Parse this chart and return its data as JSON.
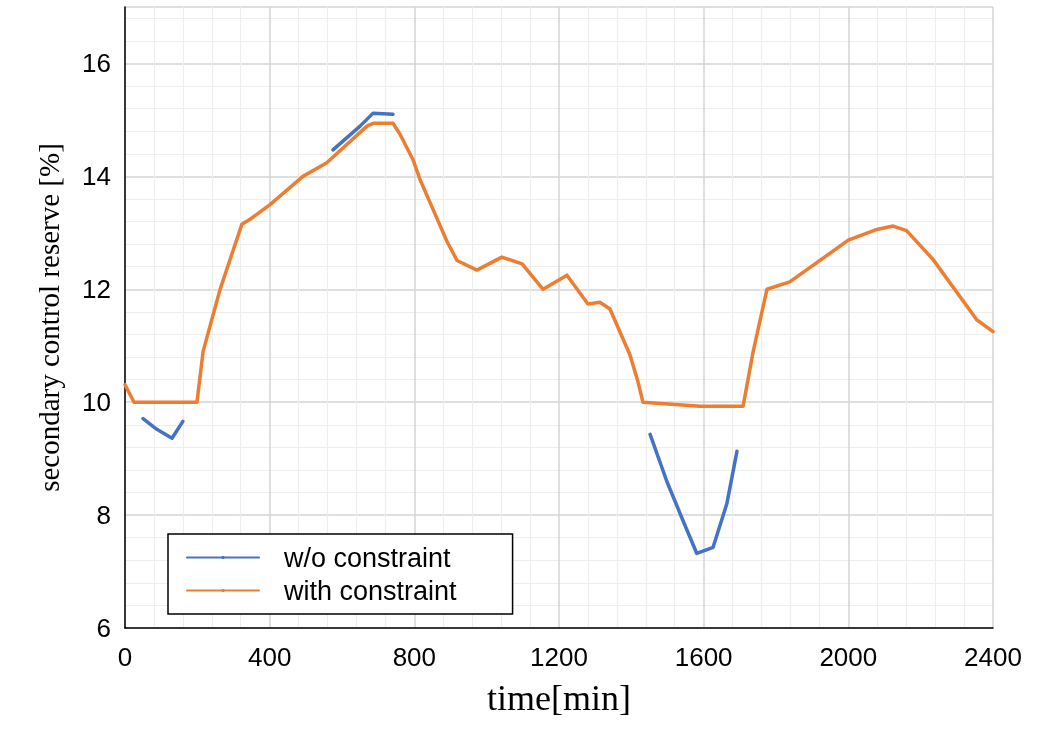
{
  "chart_data": {
    "type": "line",
    "xlabel": "time[min]",
    "ylabel": "secondary control reserve [%]",
    "xlim": [
      0,
      2400
    ],
    "xticks": [
      0,
      400,
      800,
      1200,
      1600,
      2000,
      2400
    ],
    "ylim": [
      6,
      17
    ],
    "yticks": [
      6,
      8,
      10,
      12,
      14,
      16
    ],
    "grid": true,
    "legend": "bottom left",
    "marker": "none",
    "line_style": "solid",
    "series": [
      {
        "name": "w/o constraint",
        "color": "#4472c4",
        "x": [
          50,
          88,
          130,
          160,
          401,
          575,
          650,
          686,
          741,
          1200,
          1452,
          1498,
          1543,
          1581,
          1626,
          1664,
          1692
        ],
        "values": [
          9.71,
          9.52,
          9.36,
          9.66,
          null,
          14.47,
          14.89,
          15.12,
          15.1,
          null,
          9.43,
          8.6,
          7.9,
          7.32,
          7.43,
          8.2,
          9.13
        ]
      },
      {
        "name": "with constraint",
        "color": "#ed7d31",
        "x": [
          0,
          25,
          100,
          199,
          216,
          263,
          323,
          346,
          401,
          492,
          558,
          669,
          686,
          741,
          760,
          796,
          816,
          852,
          890,
          918,
          973,
          1042,
          1098,
          1156,
          1222,
          1280,
          1313,
          1341,
          1396,
          1418,
          1432,
          1590,
          1709,
          1737,
          1775,
          1838,
          2000,
          2079,
          2124,
          2161,
          2234,
          2355,
          2400
        ],
        "values": [
          10.31,
          10.0,
          10.0,
          10.0,
          10.9,
          12.0,
          13.15,
          13.24,
          13.5,
          14.0,
          14.24,
          14.89,
          14.94,
          14.94,
          14.75,
          14.3,
          13.94,
          13.41,
          12.85,
          12.51,
          12.34,
          12.57,
          12.45,
          12.0,
          12.25,
          11.74,
          11.77,
          11.65,
          10.84,
          10.37,
          10.0,
          9.93,
          9.93,
          10.9,
          12.0,
          12.13,
          12.87,
          13.06,
          13.12,
          13.04,
          12.53,
          11.46,
          11.25
        ]
      }
    ]
  }
}
